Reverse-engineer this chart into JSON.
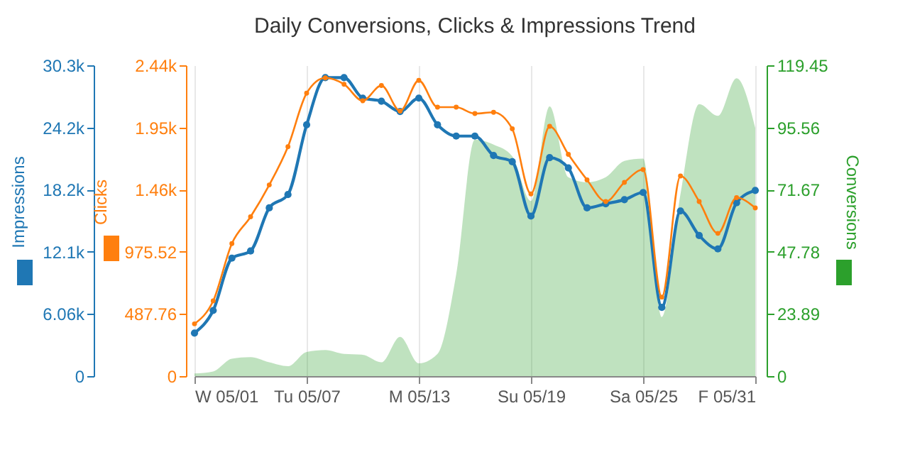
{
  "chart_data": {
    "type": "line",
    "title": "Daily Conversions, Clicks & Impressions Trend",
    "x": [
      "--05-01",
      "--05-02",
      "--05-03",
      "--05-04",
      "--05-05",
      "--05-06",
      "--05-07",
      "--05-08",
      "--05-09",
      "--05-10",
      "--05-11",
      "--05-12",
      "--05-13",
      "--05-14",
      "--05-15",
      "--05-16",
      "--05-17",
      "--05-18",
      "--05-19",
      "--05-20",
      "--05-21",
      "--05-22",
      "--05-23",
      "--05-24",
      "--05-25",
      "--05-26",
      "--05-27",
      "--05-28",
      "--05-29",
      "--05-30",
      "--05-31"
    ],
    "xlim": [
      "--05-01",
      "--05-31"
    ],
    "xticks": [
      {
        "value": "--05-01",
        "label": "W 05/01"
      },
      {
        "value": "--05-07",
        "label": "Tu 05/07"
      },
      {
        "value": "--05-13",
        "label": "M 05/13"
      },
      {
        "value": "--05-19",
        "label": "Su 05/19"
      },
      {
        "value": "--05-25",
        "label": "Sa 05/25"
      },
      {
        "value": "--05-31",
        "label": "F 05/31"
      }
    ],
    "series": [
      {
        "name": "Conversions",
        "type": "area",
        "axis": "y3",
        "color": "#2ca02c",
        "values": [
          1,
          1.8,
          6.7,
          7.3,
          5.3,
          3.8,
          9.3,
          10,
          8.5,
          8.2,
          5.3,
          15.1,
          4.9,
          8.5,
          39.1,
          90.9,
          89,
          84.5,
          67.3,
          103.6,
          76.4,
          74.5,
          76.4,
          82.7,
          83.6,
          22.7,
          70,
          104.5,
          100,
          114.5,
          95.4
        ]
      },
      {
        "name": "Impressions",
        "marker": "circle",
        "axis": "y",
        "color": "#1f77b4",
        "values": [
          4200,
          6400,
          11500,
          12200,
          16400,
          17700,
          24500,
          29100,
          29100,
          27100,
          26800,
          25800,
          27100,
          24500,
          23400,
          23400,
          21500,
          20900,
          15600,
          21300,
          20300,
          16400,
          16800,
          17200,
          17900,
          6700,
          16100,
          13700,
          12400,
          16900,
          18100
        ]
      },
      {
        "name": "Clicks",
        "marker": "circle",
        "axis": "y2",
        "color": "#ff7f0e",
        "values": [
          410,
          590,
          1040,
          1250,
          1500,
          1800,
          2220,
          2340,
          2290,
          2160,
          2280,
          2080,
          2320,
          2110,
          2110,
          2060,
          2070,
          1940,
          1430,
          1960,
          1740,
          1540,
          1370,
          1520,
          1620,
          620,
          1570,
          1370,
          1120,
          1400,
          1320
        ]
      }
    ],
    "ylim": [
      0,
      30300
    ],
    "yticks": [
      {
        "value": 0,
        "label": "0"
      },
      {
        "value": 6060,
        "label": "6.06k"
      },
      {
        "value": 12120,
        "label": "12.1k"
      },
      {
        "value": 18180,
        "label": "18.2k"
      },
      {
        "value": 24240,
        "label": "24.2k"
      },
      {
        "value": 30300,
        "label": "30.3k"
      }
    ],
    "y2lim": [
      0,
      2438.8
    ],
    "y2ticks": [
      {
        "value": 0,
        "label": "0"
      },
      {
        "value": 487.76,
        "label": "487.76"
      },
      {
        "value": 975.52,
        "label": "975.52"
      },
      {
        "value": 1463.28,
        "label": "1.46k"
      },
      {
        "value": 1951.04,
        "label": "1.95k"
      },
      {
        "value": 2438.8,
        "label": "2.44k"
      }
    ],
    "y3lim": [
      0,
      119.45
    ],
    "y3ticks": [
      {
        "value": 0,
        "label": "0"
      },
      {
        "value": 23.89,
        "label": "23.89"
      },
      {
        "value": 47.78,
        "label": "47.78"
      },
      {
        "value": 71.67,
        "label": "71.67"
      },
      {
        "value": 95.56,
        "label": "95.56"
      },
      {
        "value": 119.45,
        "label": "119.45"
      }
    ],
    "grid": "x",
    "line_style": "solid"
  }
}
